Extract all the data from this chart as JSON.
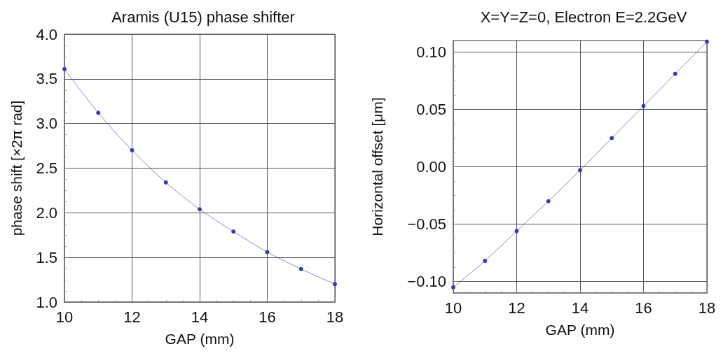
{
  "chart_data": [
    {
      "type": "line",
      "title": "Aramis (U15) phase shifter",
      "xlabel": "GAP (mm)",
      "ylabel": "phase shift [×2π rad]",
      "x": [
        10,
        11,
        12,
        13,
        14,
        15,
        16,
        17,
        18
      ],
      "series": [
        {
          "color": "#3a3aa8",
          "values": [
            3.61,
            3.12,
            2.7,
            2.34,
            2.04,
            1.79,
            1.56,
            1.37,
            1.2
          ]
        }
      ],
      "xlim": [
        10,
        18
      ],
      "xticks": [
        10,
        12,
        14,
        16,
        18
      ],
      "ylim": [
        1,
        4
      ],
      "yticks": [
        {
          "value": 1,
          "label": "1.0"
        },
        {
          "value": 1.5,
          "label": "1.5"
        },
        {
          "value": 2,
          "label": "2.0"
        },
        {
          "value": 2.5,
          "label": "2.5"
        },
        {
          "value": 3,
          "label": "3.0"
        },
        {
          "value": 3.5,
          "label": "3.5"
        },
        {
          "value": 4,
          "label": "4.0"
        }
      ],
      "grid": true,
      "marker": "circle",
      "line_style": "solid"
    },
    {
      "type": "line",
      "title": "X=Y=Z=0, Electron E=2.2GeV",
      "xlabel": "GAP (mm)",
      "ylabel": "Horizontal offset [μm]",
      "x": [
        10,
        11,
        12,
        13,
        14,
        15,
        16,
        17,
        18
      ],
      "series": [
        {
          "color": "#3a3aa8",
          "values": [
            -0.105,
            -0.082,
            -0.056,
            -0.03,
            -0.003,
            0.025,
            0.053,
            0.081,
            0.109
          ]
        }
      ],
      "xlim": [
        10,
        18
      ],
      "xticks": [
        10,
        12,
        14,
        16,
        18
      ],
      "ylim": [
        -0.11,
        0.11
      ],
      "yticks": [
        {
          "value": -0.1,
          "label": "−0.10"
        },
        {
          "value": -0.05,
          "label": "−0.05"
        },
        {
          "value": 0,
          "label": "0.00"
        },
        {
          "value": 0.05,
          "label": "0.05"
        },
        {
          "value": 0.1,
          "label": "0.10"
        }
      ],
      "grid": true,
      "marker": "circle",
      "line_style": "solid"
    }
  ]
}
